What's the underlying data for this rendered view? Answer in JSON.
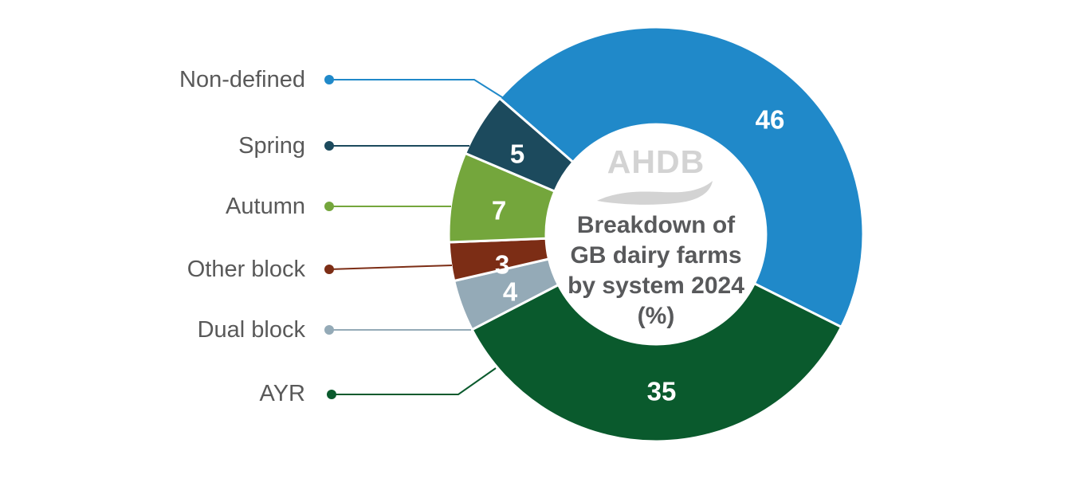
{
  "chart_data": {
    "type": "pie",
    "subtype": "donut",
    "title": "Breakdown of GB dairy farms by system 2024 (%)",
    "title_lines": [
      "Breakdown of",
      "GB dairy farms",
      "by system 2024",
      "(%)"
    ],
    "center_logo": "AHDB",
    "unit": "percent",
    "total": 100,
    "slices": [
      {
        "label": "Non-defined",
        "value": 46,
        "color": "#2089c9"
      },
      {
        "label": "Spring",
        "value": 5,
        "color": "#1c4a5d"
      },
      {
        "label": "Autumn",
        "value": 7,
        "color": "#74a63c"
      },
      {
        "label": "Other block",
        "value": 3,
        "color": "#7c2d15"
      },
      {
        "label": "Dual block",
        "value": 4,
        "color": "#94aab7"
      },
      {
        "label": "AYR",
        "value": 35,
        "color": "#0a5a2d"
      }
    ],
    "layout_hints": {
      "legend_position": "left",
      "start_angle_deg_clockwise_from_top": -49,
      "clockwise_slice_order": [
        "Non-defined",
        "AYR",
        "Dual block",
        "Other block",
        "Autumn",
        "Spring"
      ],
      "value_labels": "inside-slices-white",
      "separator": "white"
    }
  }
}
